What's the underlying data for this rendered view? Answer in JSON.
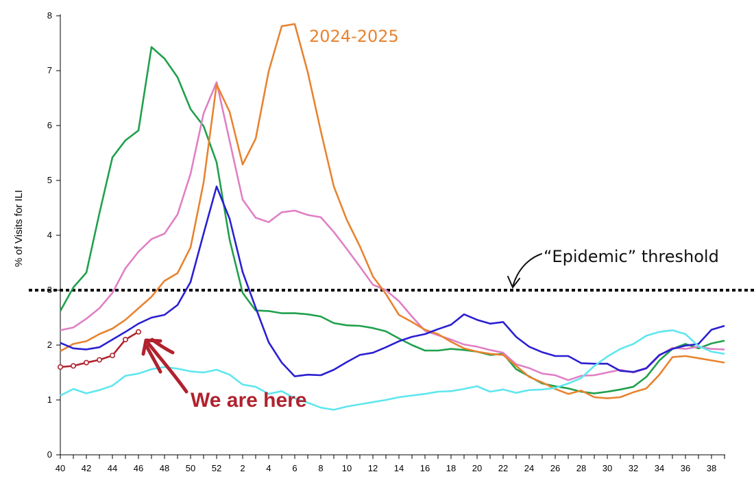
{
  "chart_data": {
    "type": "line",
    "ylabel": "% of Visits for ILI",
    "xlabel": "",
    "ylim": [
      0,
      8
    ],
    "yticks": [
      "0",
      "1",
      "2",
      "3",
      "4",
      "5",
      "6",
      "7",
      "8"
    ],
    "x_weeks": [
      40,
      41,
      42,
      43,
      44,
      45,
      46,
      47,
      48,
      49,
      50,
      51,
      52,
      1,
      2,
      3,
      4,
      5,
      6,
      7,
      8,
      9,
      10,
      11,
      12,
      13,
      14,
      15,
      16,
      17,
      18,
      19,
      20,
      21,
      22,
      23,
      24,
      25,
      26,
      27,
      28,
      29,
      30,
      31,
      32,
      33,
      34,
      35,
      36,
      37,
      38,
      39
    ],
    "xtick_labels": [
      "40",
      "42",
      "44",
      "46",
      "48",
      "50",
      "52",
      "2",
      "4",
      "6",
      "8",
      "10",
      "12",
      "14",
      "16",
      "18",
      "20",
      "22",
      "24",
      "26",
      "28",
      "30",
      "32",
      "34",
      "36",
      "38"
    ],
    "threshold": 3.0,
    "series": [
      {
        "color": "#1fa04b",
        "values": [
          2.62,
          3.05,
          3.32,
          4.4,
          5.42,
          5.73,
          5.91,
          7.43,
          7.22,
          6.88,
          6.3,
          5.99,
          5.33,
          3.92,
          2.95,
          2.63,
          2.62,
          2.58,
          2.58,
          2.56,
          2.52,
          2.4,
          2.36,
          2.35,
          2.31,
          2.25,
          2.12,
          2.0,
          1.9,
          1.9,
          1.93,
          1.91,
          1.88,
          1.82,
          1.84,
          1.56,
          1.43,
          1.3,
          1.25,
          1.21,
          1.15,
          1.12,
          1.15,
          1.19,
          1.24,
          1.42,
          1.72,
          1.93,
          2.02,
          1.94,
          2.03,
          2.08
        ]
      },
      {
        "color": "#e07fc4",
        "values": [
          2.27,
          2.32,
          2.48,
          2.67,
          2.95,
          3.4,
          3.7,
          3.93,
          4.03,
          4.38,
          5.12,
          6.22,
          6.79,
          5.72,
          4.65,
          4.32,
          4.24,
          4.42,
          4.45,
          4.37,
          4.33,
          4.06,
          3.75,
          3.43,
          3.1,
          3.0,
          2.8,
          2.52,
          2.26,
          2.18,
          2.1,
          2.01,
          1.97,
          1.91,
          1.86,
          1.65,
          1.58,
          1.48,
          1.45,
          1.36,
          1.44,
          1.45,
          1.5,
          1.55,
          1.5,
          1.57,
          1.81,
          1.95,
          1.93,
          1.97,
          1.93,
          1.92
        ]
      },
      {
        "color": "#e8832f",
        "values": [
          1.89,
          2.02,
          2.07,
          2.2,
          2.3,
          2.46,
          2.67,
          2.88,
          3.17,
          3.31,
          3.78,
          4.96,
          6.75,
          6.25,
          5.29,
          5.76,
          6.99,
          7.81,
          7.85,
          6.97,
          5.9,
          4.89,
          4.28,
          3.8,
          3.25,
          2.93,
          2.55,
          2.42,
          2.28,
          2.2,
          2.06,
          1.94,
          1.88,
          1.84,
          1.82,
          1.62,
          1.42,
          1.32,
          1.2,
          1.11,
          1.17,
          1.05,
          1.03,
          1.05,
          1.14,
          1.21,
          1.46,
          1.78,
          1.8,
          1.76,
          1.72,
          1.68
        ]
      },
      {
        "color": "#2a1fd1",
        "values": [
          2.04,
          1.94,
          1.92,
          1.96,
          2.1,
          2.24,
          2.39,
          2.5,
          2.55,
          2.73,
          3.15,
          4.03,
          4.89,
          4.3,
          3.33,
          2.68,
          2.05,
          1.68,
          1.43,
          1.46,
          1.45,
          1.55,
          1.69,
          1.82,
          1.86,
          1.96,
          2.07,
          2.15,
          2.2,
          2.29,
          2.37,
          2.56,
          2.46,
          2.39,
          2.42,
          2.15,
          1.97,
          1.87,
          1.8,
          1.8,
          1.67,
          1.66,
          1.66,
          1.53,
          1.51,
          1.58,
          1.82,
          1.93,
          1.99,
          2.02,
          2.28,
          2.35
        ]
      },
      {
        "color": "#5fe6ef",
        "values": [
          1.08,
          1.2,
          1.12,
          1.18,
          1.26,
          1.44,
          1.48,
          1.56,
          1.6,
          1.57,
          1.52,
          1.5,
          1.55,
          1.46,
          1.28,
          1.24,
          1.11,
          1.16,
          1.03,
          0.95,
          0.86,
          0.82,
          0.88,
          0.92,
          0.96,
          1.0,
          1.05,
          1.08,
          1.11,
          1.15,
          1.16,
          1.2,
          1.25,
          1.15,
          1.19,
          1.13,
          1.18,
          1.19,
          1.22,
          1.3,
          1.4,
          1.62,
          1.79,
          1.93,
          2.02,
          2.17,
          2.24,
          2.27,
          2.2,
          1.98,
          1.88,
          1.84
        ]
      },
      {
        "color": "#b0222e",
        "markers": true,
        "values": [
          1.6,
          1.62,
          1.68,
          1.73,
          1.81,
          2.1,
          2.24
        ]
      }
    ],
    "annotations": {
      "season_label": "2024-2025",
      "threshold_label": "“Epidemic” threshold",
      "here_label": "We are here"
    }
  },
  "colors": {
    "season_label": "#e8832f",
    "here": "#b0222e",
    "threshold": "#000000"
  }
}
